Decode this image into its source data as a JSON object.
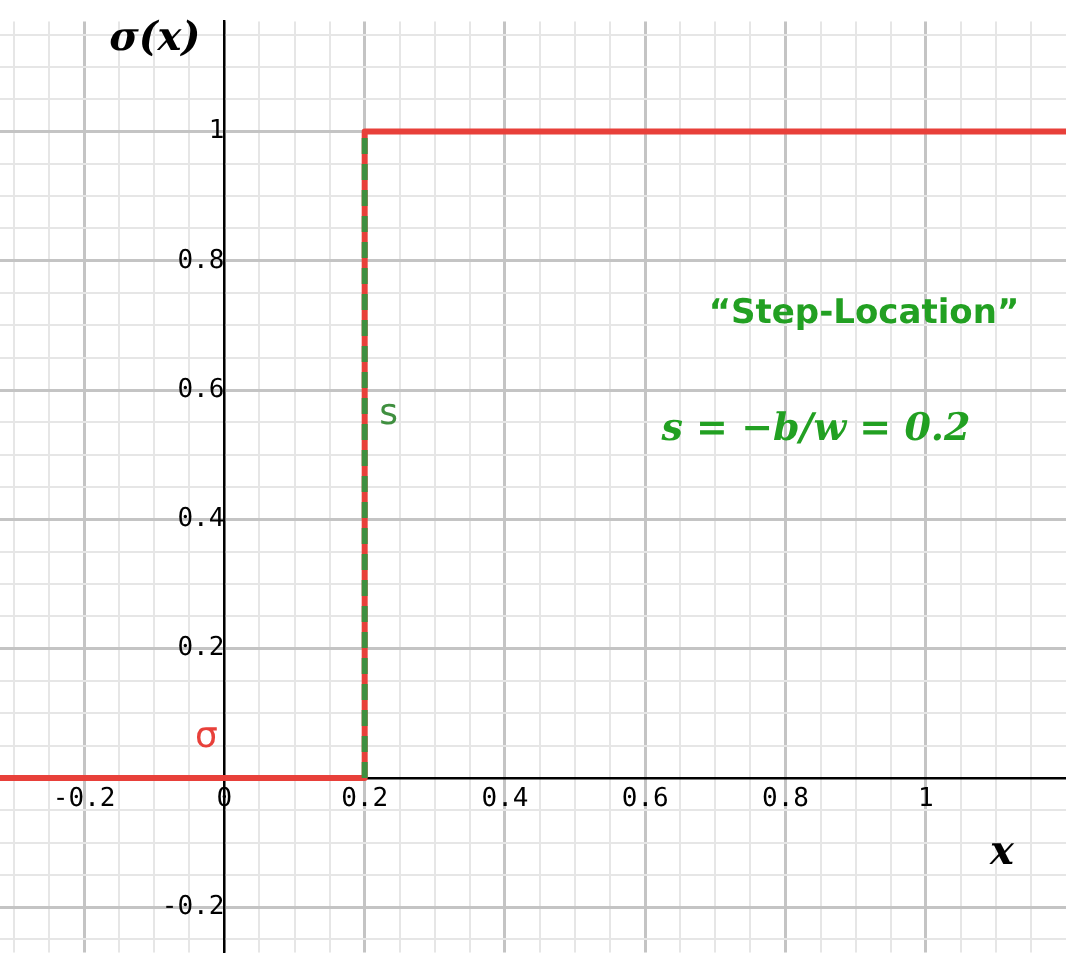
{
  "chart_data": {
    "type": "line",
    "xlabel": "x",
    "ylabel": "σ(x)",
    "series": [
      {
        "name": "σ",
        "color": "#e8403a",
        "x": [
          -0.32,
          0.2,
          0.2,
          1.2
        ],
        "values": [
          0,
          0,
          1,
          1
        ],
        "line_style": "solid"
      },
      {
        "name": "s",
        "color": "#3f8f3f",
        "x": [
          0.2,
          0.2
        ],
        "values": [
          0,
          1
        ],
        "line_style": "dashed"
      }
    ],
    "xlim": [
      -0.32,
      1.2
    ],
    "ylim": [
      -0.27,
      1.17
    ],
    "xticks": [
      {
        "value": -0.3,
        "label": null
      },
      {
        "value": -0.25,
        "label": null
      },
      {
        "value": -0.2,
        "label": "-0.2"
      },
      {
        "value": -0.15,
        "label": null
      },
      {
        "value": -0.1,
        "label": null
      },
      {
        "value": -0.05,
        "label": null
      },
      0,
      {
        "value": 0.05,
        "label": null
      },
      {
        "value": 0.1,
        "label": null
      },
      {
        "value": 0.15,
        "label": null
      },
      0.2,
      {
        "value": 0.25,
        "label": null
      },
      {
        "value": 0.3,
        "label": null
      },
      {
        "value": 0.35,
        "label": null
      },
      0.4,
      {
        "value": 0.45,
        "label": null
      },
      {
        "value": 0.5,
        "label": null
      },
      {
        "value": 0.55,
        "label": null
      },
      0.6,
      {
        "value": 0.65,
        "label": null
      },
      {
        "value": 0.7,
        "label": null
      },
      {
        "value": 0.75,
        "label": null
      },
      0.8,
      {
        "value": 0.85,
        "label": null
      },
      {
        "value": 0.9,
        "label": null
      },
      {
        "value": 0.95,
        "label": null
      },
      1,
      {
        "value": 1.05,
        "label": null
      },
      {
        "value": 1.1,
        "label": null
      },
      {
        "value": 1.15,
        "label": null
      }
    ],
    "yticks": [
      {
        "value": -0.25,
        "label": null
      },
      {
        "value": -0.2,
        "label": "-0.2"
      },
      {
        "value": -0.15,
        "label": null
      },
      {
        "value": -0.1,
        "label": null
      },
      {
        "value": -0.05,
        "label": null
      },
      {
        "value": 0,
        "label": null
      },
      {
        "value": 0.05,
        "label": null
      },
      {
        "value": 0.1,
        "label": null
      },
      {
        "value": 0.15,
        "label": null
      },
      0.2,
      {
        "value": 0.25,
        "label": null
      },
      {
        "value": 0.3,
        "label": null
      },
      {
        "value": 0.35,
        "label": null
      },
      0.4,
      {
        "value": 0.45,
        "label": null
      },
      {
        "value": 0.5,
        "label": null
      },
      {
        "value": 0.55,
        "label": null
      },
      0.6,
      {
        "value": 0.65,
        "label": null
      },
      {
        "value": 0.7,
        "label": null
      },
      {
        "value": 0.75,
        "label": null
      },
      0.8,
      {
        "value": 0.85,
        "label": null
      },
      {
        "value": 0.9,
        "label": null
      },
      {
        "value": 0.95,
        "label": null
      },
      1,
      {
        "value": 1.05,
        "label": null
      },
      {
        "value": 1.1,
        "label": null
      },
      {
        "value": 1.15,
        "label": null
      }
    ],
    "grid": true,
    "legend": false,
    "annotations": [
      "“Step-Location”",
      "s = −b/w = 0.2"
    ]
  }
}
